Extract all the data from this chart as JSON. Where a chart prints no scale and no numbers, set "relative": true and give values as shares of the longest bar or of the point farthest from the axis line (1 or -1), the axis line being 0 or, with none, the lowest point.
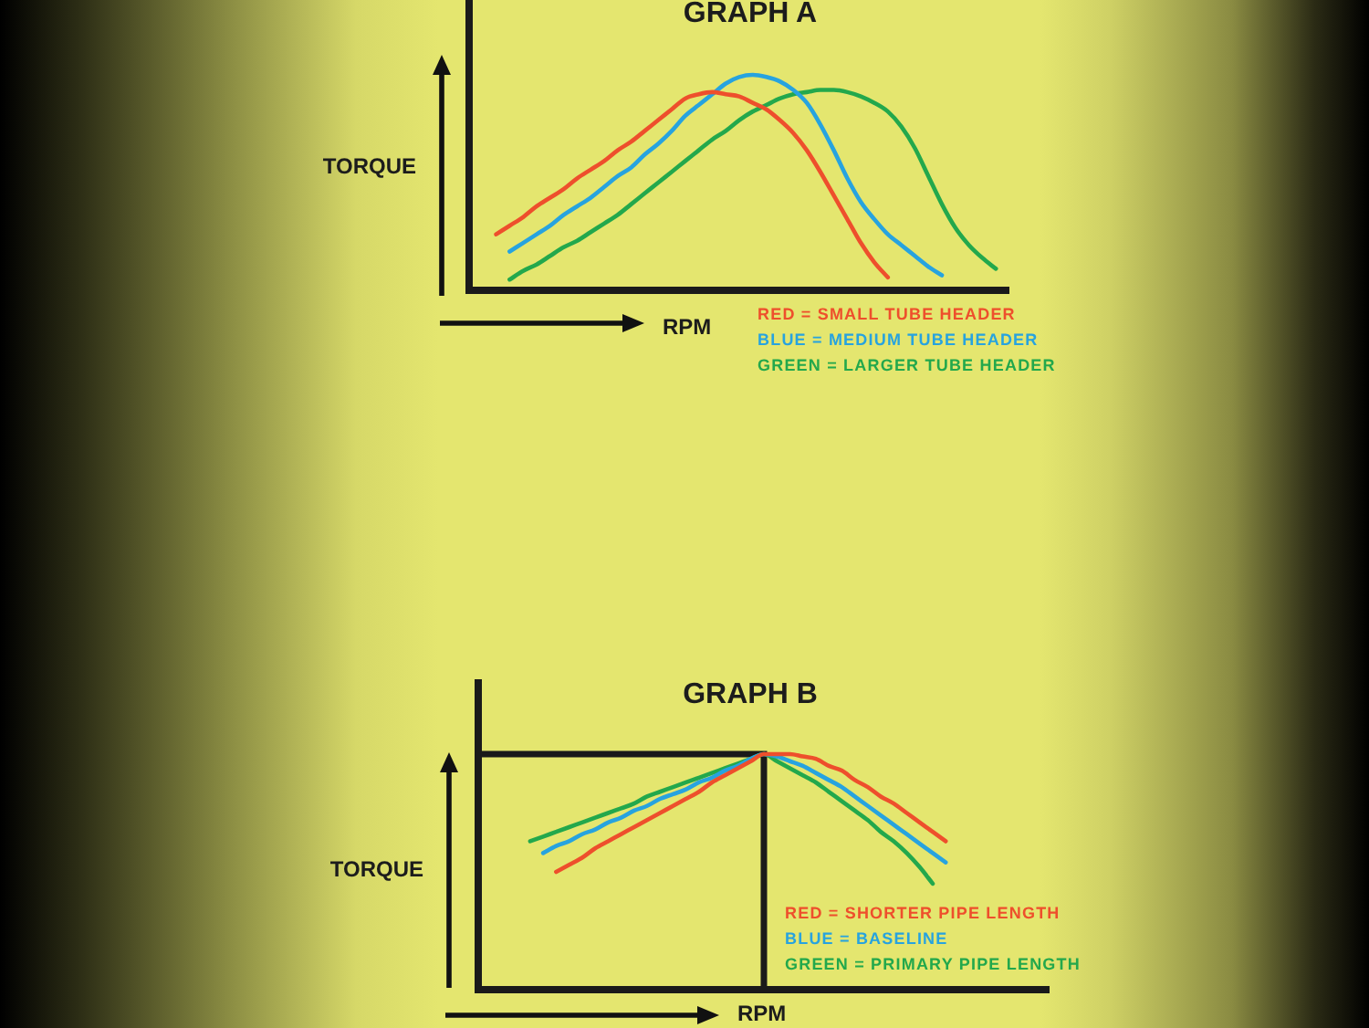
{
  "chart_data": [
    {
      "type": "line",
      "title": "GRAPH A",
      "xlabel": "RPM",
      "ylabel": "TORQUE",
      "relative": true,
      "legend": "bottom right",
      "categories": [
        null,
        null,
        null,
        null,
        null,
        null,
        null,
        null,
        null,
        null,
        null,
        null,
        null,
        null,
        null,
        null,
        null,
        null,
        null,
        null,
        null,
        null,
        null,
        null,
        null,
        null,
        null,
        null,
        null,
        null,
        null,
        null,
        null,
        null,
        null,
        null,
        null,
        null,
        null,
        null,
        null
      ],
      "series": [
        {
          "name": "RED = SMALL TUBE HEADER",
          "color": "#ee4f2c",
          "values": [
            null,
            null,
            0.26,
            0.3,
            0.34,
            0.39,
            0.43,
            0.47,
            0.52,
            0.56,
            0.6,
            0.65,
            0.69,
            0.74,
            0.79,
            0.84,
            0.89,
            0.91,
            0.92,
            0.91,
            0.9,
            0.87,
            0.84,
            0.79,
            0.73,
            0.65,
            0.55,
            0.44,
            0.33,
            0.22,
            0.13,
            0.06,
            null,
            null,
            null,
            null,
            null,
            null,
            null,
            null,
            null
          ]
        },
        {
          "name": "BLUE = MEDIUM TUBE HEADER",
          "color": "#27a3df",
          "values": [
            null,
            null,
            null,
            0.18,
            0.22,
            0.26,
            0.3,
            0.35,
            0.39,
            0.43,
            0.48,
            0.53,
            0.57,
            0.63,
            0.68,
            0.74,
            0.81,
            0.86,
            0.91,
            0.96,
            0.99,
            1,
            0.99,
            0.97,
            0.93,
            0.87,
            0.77,
            0.65,
            0.52,
            0.41,
            0.33,
            0.26,
            0.21,
            0.16,
            0.11,
            0.07,
            null,
            null,
            null,
            null,
            null
          ]
        },
        {
          "name": "GREEN = LARGER TUBE HEADER",
          "color": "#23a84c",
          "values": [
            null,
            null,
            null,
            0.05,
            0.09,
            0.12,
            0.16,
            0.2,
            0.23,
            0.27,
            0.31,
            0.35,
            0.4,
            0.45,
            0.5,
            0.55,
            0.6,
            0.65,
            0.7,
            0.74,
            0.79,
            0.83,
            0.86,
            0.89,
            0.91,
            0.92,
            0.93,
            0.93,
            0.92,
            0.9,
            0.87,
            0.83,
            0.76,
            0.66,
            0.53,
            0.4,
            0.29,
            0.21,
            0.15,
            0.1,
            null
          ]
        }
      ]
    },
    {
      "type": "line",
      "title": "GRAPH B",
      "xlabel": "RPM",
      "ylabel": "TORQUE",
      "relative": true,
      "legend": "bottom right",
      "categories": [
        null,
        null,
        null,
        null,
        null,
        null,
        null,
        null,
        null,
        null,
        null,
        null,
        null,
        null,
        null,
        null,
        null,
        null,
        null,
        null,
        null,
        null,
        null,
        null,
        null,
        null,
        null,
        null,
        null,
        null,
        null,
        null,
        null,
        null,
        null,
        null,
        null,
        null,
        null,
        null,
        null,
        null,
        null,
        null,
        null
      ],
      "ref_lines": [
        {
          "axis": "y",
          "value": 1,
          "color": "#1a1a1a"
        }
      ],
      "series": [
        {
          "name": "RED = SHORTER PIPE LENGTH",
          "color": "#ee4f2c",
          "values": [
            null,
            null,
            null,
            null,
            null,
            null,
            0.5,
            0.53,
            0.56,
            0.6,
            0.63,
            0.66,
            0.69,
            0.72,
            0.75,
            0.78,
            0.81,
            0.84,
            0.88,
            0.91,
            0.94,
            0.97,
            1,
            1,
            1,
            0.99,
            0.98,
            0.95,
            0.93,
            0.89,
            0.86,
            0.82,
            0.79,
            0.75,
            0.71,
            0.67,
            0.63,
            null,
            null,
            null,
            null,
            null,
            null,
            null,
            null
          ]
        },
        {
          "name": "BLUE = BASELINE",
          "color": "#27a3df",
          "values": [
            null,
            null,
            null,
            null,
            null,
            0.58,
            0.61,
            0.63,
            0.66,
            0.68,
            0.71,
            0.73,
            0.76,
            0.78,
            0.81,
            0.83,
            0.85,
            0.88,
            0.9,
            0.93,
            0.95,
            0.98,
            1,
            0.99,
            0.97,
            0.95,
            0.92,
            0.89,
            0.86,
            0.82,
            0.78,
            0.74,
            0.7,
            0.66,
            0.62,
            0.58,
            0.54,
            null,
            null,
            null,
            null,
            null,
            null,
            null,
            null
          ]
        },
        {
          "name": "GREEN = PRIMARY PIPE LENGTH",
          "color": "#23a84c",
          "values": [
            null,
            null,
            null,
            null,
            0.63,
            0.65,
            0.67,
            0.69,
            0.71,
            0.73,
            0.75,
            0.77,
            0.79,
            0.82,
            0.84,
            0.86,
            0.88,
            0.9,
            0.92,
            0.94,
            0.96,
            0.98,
            1,
            0.97,
            0.94,
            0.91,
            0.88,
            0.84,
            0.8,
            0.76,
            0.72,
            0.67,
            0.63,
            0.58,
            0.52,
            0.45,
            null,
            null,
            null,
            null,
            null,
            null,
            null,
            null,
            null
          ]
        }
      ]
    }
  ]
}
